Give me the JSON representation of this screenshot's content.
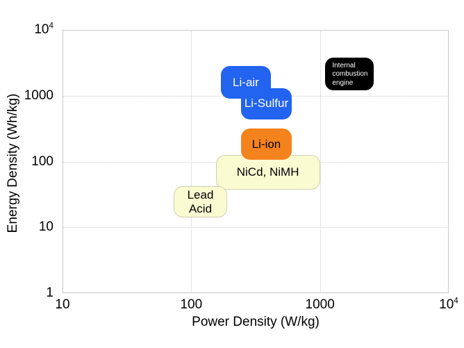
{
  "chart_data": {
    "type": "scatter",
    "variant": "labeled-region Ragone plot",
    "title": "",
    "xlabel": "Power Density (W/kg)",
    "ylabel": "Energy Density (Wh/kg)",
    "xscale": "log",
    "yscale": "log",
    "xlim": [
      10,
      10000
    ],
    "ylim": [
      1,
      10000
    ],
    "x_ticks": [
      {
        "value": 10,
        "label": "10"
      },
      {
        "value": 100,
        "label": "100"
      },
      {
        "value": 1000,
        "label": "1000"
      },
      {
        "value": 10000,
        "label": "10^4"
      }
    ],
    "y_ticks": [
      {
        "value": 1,
        "label": "1"
      },
      {
        "value": 10,
        "label": "10"
      },
      {
        "value": 100,
        "label": "100"
      },
      {
        "value": 1000,
        "label": "1000"
      },
      {
        "value": 10000,
        "label": "10^4"
      }
    ],
    "grid": "major decades, dotted, shown only inside plot",
    "legend": "none",
    "regions": [
      {
        "name": "Li-air",
        "label_lines": [
          "Li-air"
        ],
        "power_range_W_per_kg": [
          170,
          415
        ],
        "energy_range_Wh_per_kg": [
          900,
          2800
        ],
        "fill": "#2263EF",
        "border": null,
        "text_color": "#FFFFFF",
        "text_size": "normal"
      },
      {
        "name": "Li-Sulfur",
        "label_lines": [
          "Li-Sulfur"
        ],
        "power_range_W_per_kg": [
          245,
          600
        ],
        "energy_range_Wh_per_kg": [
          435,
          1300
        ],
        "fill": "#2263EF",
        "border": null,
        "text_color": "#FFFFFF",
        "text_size": "normal"
      },
      {
        "name": "NiCd, NiMH",
        "label_lines": [
          "NiCd, NiMH"
        ],
        "power_range_W_per_kg": [
          155,
          1000
        ],
        "energy_range_Wh_per_kg": [
          37,
          126
        ],
        "fill": "#FBFBD2",
        "border": "#CFCFAE",
        "text_color": "#000000",
        "text_size": "normal"
      },
      {
        "name": "Li-ion",
        "label_lines": [
          "Li-ion"
        ],
        "power_range_W_per_kg": [
          245,
          600
        ],
        "energy_range_Wh_per_kg": [
          105,
          320
        ],
        "fill": "#F5831D",
        "border": null,
        "text_color": "#000000",
        "text_size": "normal"
      },
      {
        "name": "Lead Acid",
        "label_lines": [
          "Lead",
          "Acid"
        ],
        "power_range_W_per_kg": [
          73,
          190
        ],
        "energy_range_Wh_per_kg": [
          14,
          42
        ],
        "fill": "#FBFBD2",
        "border": "#CFCFAE",
        "text_color": "#000000",
        "text_size": "normal"
      },
      {
        "name": "Internal combustion engine",
        "label_lines": [
          "Internal",
          "combustion",
          "engine"
        ],
        "power_range_W_per_kg": [
          1100,
          2600
        ],
        "energy_range_Wh_per_kg": [
          1200,
          3800
        ],
        "fill": "#000000",
        "border": null,
        "text_color": "#FFFFFF",
        "text_size": "small"
      }
    ],
    "colors": {
      "background": "#FFFFFF",
      "plot_border": "#C9C9C9",
      "gridline": "#C9C9C9",
      "tick_text": "#000000",
      "axis_title_text": "#000000"
    }
  }
}
